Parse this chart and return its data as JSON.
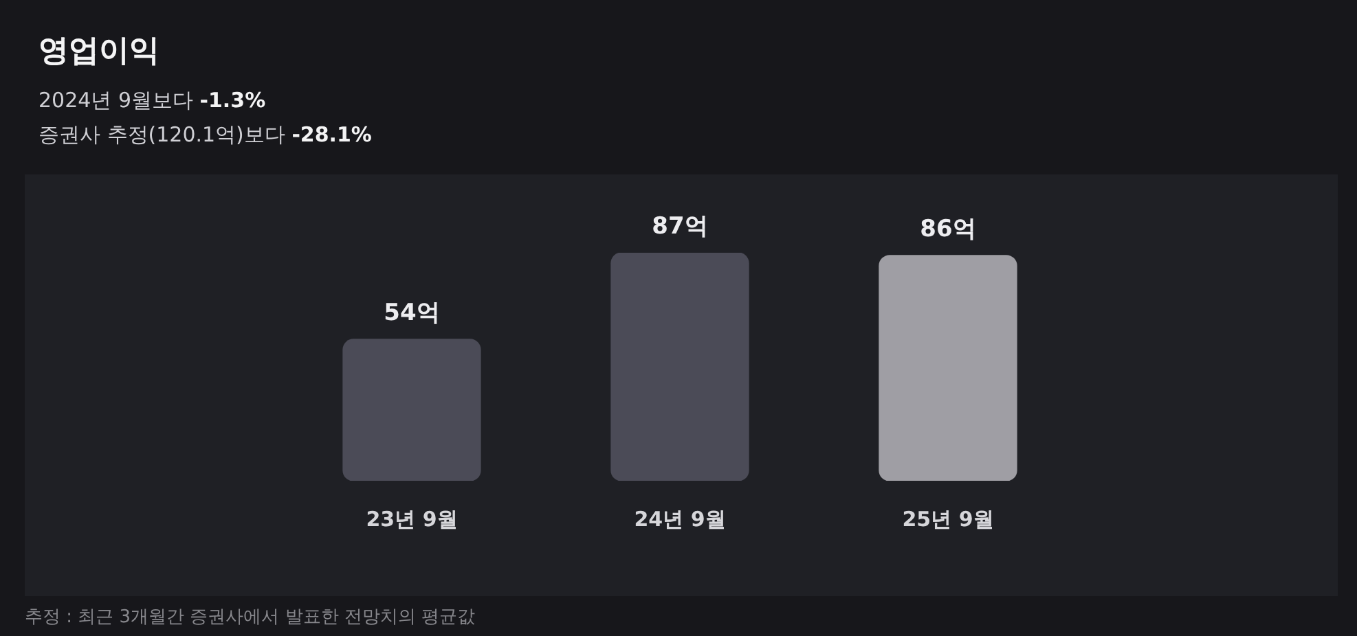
{
  "chart_data": {
    "type": "bar",
    "title": "영업이익",
    "subtitle": "2024년 9월보다 -1.3%\n증권사 추정(120.1억)보다 -28.1%",
    "categories": [
      "23년 9월",
      "24년 9월",
      "25년 9월"
    ],
    "values": [
      54,
      87,
      86
    ],
    "colors": [
      "#4b4b57",
      "#4b4b57",
      "#9f9ea4"
    ],
    "value_labels": [
      "54억",
      "87억",
      "86억"
    ],
    "annotations": [
      "추정 : 최근 3개월간 증권사에서 발표한 전망치의 평균값"
    ],
    "legend": false,
    "tick_labels": "x"
  }
}
